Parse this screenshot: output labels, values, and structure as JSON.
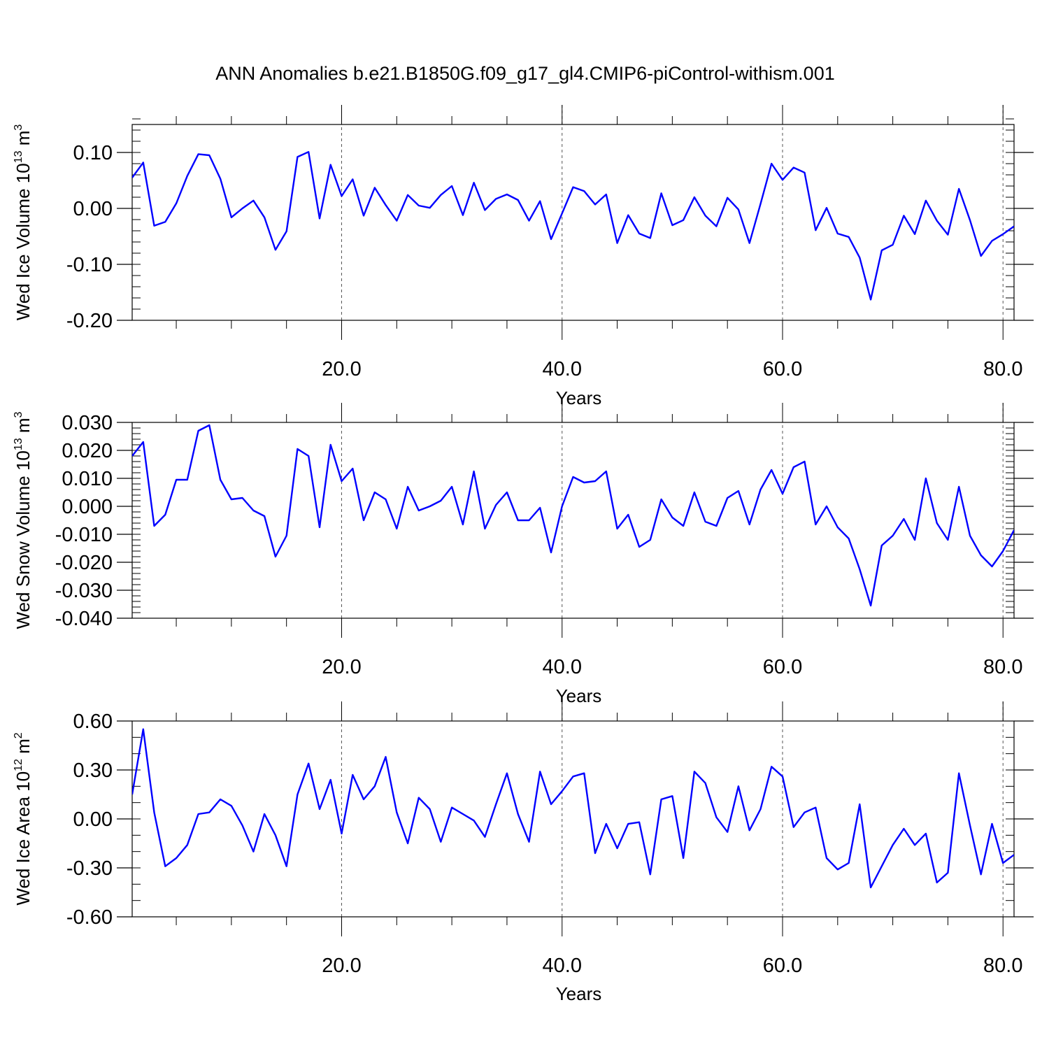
{
  "title": "ANN Anomalies b.e21.B1850G.f09_g17_gl4.CMIP6-piControl-withism.001",
  "colors": {
    "line": "#0000ff",
    "axes": "#000000",
    "grid": "#555555"
  },
  "chart_data": [
    {
      "type": "line",
      "title": "ANN Anomalies b.e21.B1850G.f09_g17_gl4.CMIP6-piControl-withism.001",
      "xlabel": "Years",
      "ylabel": {
        "text": "Wed Ice Volume 10",
        "sup": "13",
        "unit": " m",
        "unit_sup": "3"
      },
      "xlim": [
        1,
        81
      ],
      "ylim": [
        -0.2,
        0.15
      ],
      "xticks": [
        20,
        40,
        60,
        80
      ],
      "xtick_labels": [
        "20.0",
        "40.0",
        "60.0",
        "80.0"
      ],
      "yticks": [
        -0.2,
        -0.1,
        0.0,
        0.1
      ],
      "ytick_labels": [
        "-0.20",
        "-0.10",
        "0.00",
        "0.10"
      ],
      "y_minor_step": 0.02,
      "x_minor_step": 5,
      "grid": "vertical dashed at major x ticks",
      "series": [
        {
          "color": "#0000ff",
          "x": [
            1,
            2,
            3,
            4,
            5,
            6,
            7,
            8,
            9,
            10,
            11,
            12,
            13,
            14,
            15,
            16,
            17,
            18,
            19,
            20,
            21,
            22,
            23,
            24,
            25,
            26,
            27,
            28,
            29,
            30,
            31,
            32,
            33,
            34,
            35,
            36,
            37,
            38,
            39,
            40,
            41,
            42,
            43,
            44,
            45,
            46,
            47,
            48,
            49,
            50,
            51,
            52,
            53,
            54,
            55,
            56,
            57,
            58,
            59,
            60,
            61,
            62,
            63,
            64,
            65,
            66,
            67,
            68,
            69,
            70,
            71,
            72,
            73,
            74,
            75,
            76,
            77,
            78,
            79,
            80,
            81
          ],
          "values": [
            0.055,
            0.082,
            -0.031,
            -0.024,
            0.009,
            0.058,
            0.097,
            0.095,
            0.053,
            -0.016,
            0.0,
            0.014,
            -0.016,
            -0.074,
            -0.041,
            0.092,
            0.101,
            -0.018,
            0.078,
            0.022,
            0.052,
            -0.013,
            0.037,
            0.006,
            -0.022,
            0.024,
            0.005,
            0.001,
            0.024,
            0.04,
            -0.012,
            0.046,
            -0.003,
            0.017,
            0.025,
            0.015,
            -0.022,
            0.013,
            -0.055,
            -0.009,
            0.038,
            0.031,
            0.007,
            0.025,
            -0.062,
            -0.012,
            -0.045,
            -0.053,
            0.027,
            -0.03,
            -0.021,
            0.02,
            -0.013,
            -0.032,
            0.019,
            -0.002,
            -0.062,
            0.008,
            0.08,
            0.051,
            0.073,
            0.064,
            -0.039,
            0.001,
            -0.045,
            -0.051,
            -0.088,
            -0.163,
            -0.075,
            -0.065,
            -0.013,
            -0.046,
            0.014,
            -0.022,
            -0.047,
            0.035,
            -0.021,
            -0.085,
            -0.058,
            -0.046,
            -0.032
          ]
        }
      ]
    },
    {
      "type": "line",
      "xlabel": "Years",
      "ylabel": {
        "text": "Wed Snow Volume 10",
        "sup": "13",
        "unit": " m",
        "unit_sup": "3"
      },
      "xlim": [
        1,
        81
      ],
      "ylim": [
        -0.04,
        0.03
      ],
      "xticks": [
        20,
        40,
        60,
        80
      ],
      "xtick_labels": [
        "20.0",
        "40.0",
        "60.0",
        "80.0"
      ],
      "yticks": [
        -0.04,
        -0.03,
        -0.02,
        -0.01,
        0.0,
        0.01,
        0.02,
        0.03
      ],
      "ytick_labels": [
        "-0.040",
        "-0.030",
        "-0.020",
        "-0.010",
        "0.000",
        "0.010",
        "0.020",
        "0.030"
      ],
      "y_minor_step": 0.002,
      "x_minor_step": 5,
      "grid": "vertical dashed at major x ticks",
      "series": [
        {
          "color": "#0000ff",
          "x": [
            1,
            2,
            3,
            4,
            5,
            6,
            7,
            8,
            9,
            10,
            11,
            12,
            13,
            14,
            15,
            16,
            17,
            18,
            19,
            20,
            21,
            22,
            23,
            24,
            25,
            26,
            27,
            28,
            29,
            30,
            31,
            32,
            33,
            34,
            35,
            36,
            37,
            38,
            39,
            40,
            41,
            42,
            43,
            44,
            45,
            46,
            47,
            48,
            49,
            50,
            51,
            52,
            53,
            54,
            55,
            56,
            57,
            58,
            59,
            60,
            61,
            62,
            63,
            64,
            65,
            66,
            67,
            68,
            69,
            70,
            71,
            72,
            73,
            74,
            75,
            76,
            77,
            78,
            79,
            80,
            81
          ],
          "values": [
            0.018,
            0.023,
            -0.007,
            -0.003,
            0.0095,
            0.0095,
            0.027,
            0.029,
            0.0095,
            0.0025,
            0.003,
            -0.0015,
            -0.0035,
            -0.018,
            -0.0105,
            0.0205,
            0.018,
            -0.0075,
            0.022,
            0.009,
            0.0135,
            -0.005,
            0.005,
            0.0025,
            -0.008,
            0.007,
            -0.0015,
            0.0,
            0.002,
            0.007,
            -0.0065,
            0.0125,
            -0.008,
            0.0005,
            0.005,
            -0.005,
            -0.005,
            -0.0005,
            -0.0165,
            0.0,
            0.0105,
            0.0085,
            0.009,
            0.0125,
            -0.008,
            -0.003,
            -0.0145,
            -0.012,
            0.0025,
            -0.004,
            -0.007,
            0.005,
            -0.0055,
            -0.007,
            0.003,
            0.0055,
            -0.0065,
            0.006,
            0.013,
            0.0045,
            0.014,
            0.016,
            -0.0065,
            0.0,
            -0.0075,
            -0.0115,
            -0.0225,
            -0.0355,
            -0.014,
            -0.0105,
            -0.0045,
            -0.012,
            0.01,
            -0.006,
            -0.012,
            0.007,
            -0.0105,
            -0.0175,
            -0.0215,
            -0.016,
            -0.0085
          ]
        }
      ]
    },
    {
      "type": "line",
      "xlabel": "Years",
      "ylabel": {
        "text": "Wed Ice Area 10",
        "sup": "12",
        "unit": " m",
        "unit_sup": "2"
      },
      "xlim": [
        1,
        81
      ],
      "ylim": [
        -0.6,
        0.6
      ],
      "xticks": [
        20,
        40,
        60,
        80
      ],
      "xtick_labels": [
        "20.0",
        "40.0",
        "60.0",
        "80.0"
      ],
      "yticks": [
        -0.6,
        -0.3,
        0.0,
        0.3,
        0.6
      ],
      "ytick_labels": [
        "-0.60",
        "-0.30",
        "0.00",
        "0.30",
        "0.60"
      ],
      "y_minor_step": 0.1,
      "x_minor_step": 5,
      "grid": "vertical dashed at major x ticks",
      "series": [
        {
          "color": "#0000ff",
          "x": [
            1,
            2,
            3,
            4,
            5,
            6,
            7,
            8,
            9,
            10,
            11,
            12,
            13,
            14,
            15,
            16,
            17,
            18,
            19,
            20,
            21,
            22,
            23,
            24,
            25,
            26,
            27,
            28,
            29,
            30,
            31,
            32,
            33,
            34,
            35,
            36,
            37,
            38,
            39,
            40,
            41,
            42,
            43,
            44,
            45,
            46,
            47,
            48,
            49,
            50,
            51,
            52,
            53,
            54,
            55,
            56,
            57,
            58,
            59,
            60,
            61,
            62,
            63,
            64,
            65,
            66,
            67,
            68,
            69,
            70,
            71,
            72,
            73,
            74,
            75,
            76,
            77,
            78,
            79,
            80,
            81
          ],
          "values": [
            0.15,
            0.55,
            0.04,
            -0.29,
            -0.24,
            -0.16,
            0.03,
            0.04,
            0.12,
            0.08,
            -0.04,
            -0.2,
            0.03,
            -0.1,
            -0.29,
            0.15,
            0.34,
            0.06,
            0.24,
            -0.09,
            0.27,
            0.12,
            0.2,
            0.38,
            0.04,
            -0.15,
            0.13,
            0.06,
            -0.14,
            0.07,
            0.03,
            -0.01,
            -0.11,
            0.09,
            0.28,
            0.03,
            -0.14,
            0.29,
            0.09,
            0.17,
            0.26,
            0.28,
            -0.21,
            -0.03,
            -0.18,
            -0.03,
            -0.02,
            -0.34,
            0.12,
            0.14,
            -0.24,
            0.29,
            0.22,
            0.01,
            -0.08,
            0.2,
            -0.07,
            0.06,
            0.32,
            0.26,
            -0.05,
            0.04,
            0.07,
            -0.24,
            -0.31,
            -0.27,
            0.09,
            -0.42,
            -0.29,
            -0.16,
            -0.06,
            -0.16,
            -0.09,
            -0.39,
            -0.33,
            0.28,
            -0.04,
            -0.34,
            -0.03,
            -0.27,
            -0.22
          ]
        }
      ]
    }
  ]
}
